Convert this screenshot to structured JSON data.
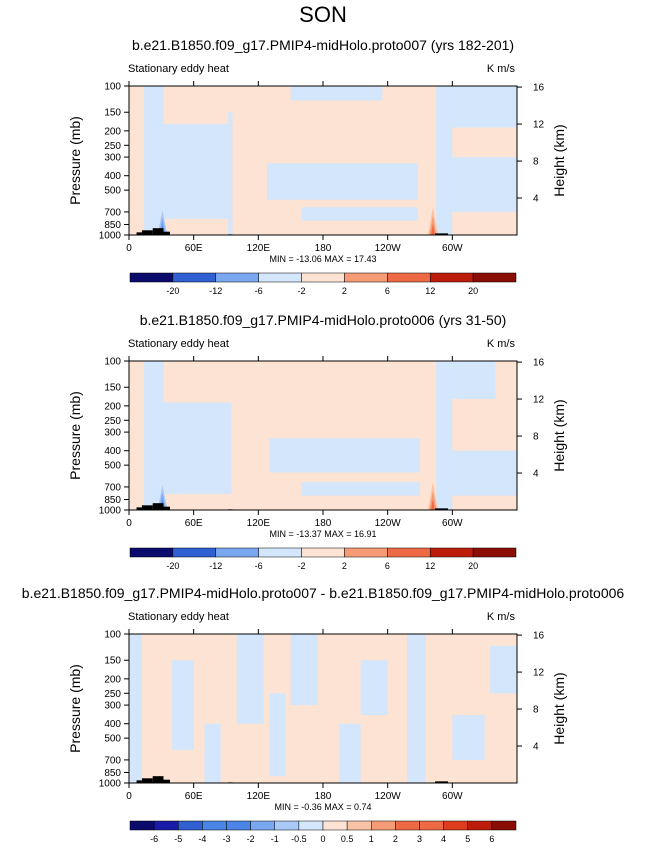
{
  "figure": {
    "season_title": "SON"
  },
  "colors": {
    "neg": [
      "#0b0b6e",
      "#1a1aa8",
      "#2f5fd0",
      "#4a84e6",
      "#7aa8f0",
      "#a9c9f7",
      "#d4e6fb"
    ],
    "pos": [
      "#fde3d3",
      "#f9c4a6",
      "#f59b76",
      "#ee6a45",
      "#de3c1c",
      "#bb1d0a",
      "#8a0e05"
    ],
    "land": "#000000"
  },
  "chart_data": [
    {
      "type": "heatmap",
      "title": "b.e21.B1850.f09_g17.PMIP4-midHolo.proto007 (yrs 182-201)",
      "left_label": "Stationary eddy heat",
      "units": "K m/s",
      "ylabel": "Pressure (mb)",
      "y2label": "Height (km)",
      "xticks": [
        "0",
        "60E",
        "120E",
        "180",
        "120W",
        "60W"
      ],
      "xtick_lon": [
        0,
        60,
        120,
        180,
        240,
        300
      ],
      "xlim": [
        0,
        360
      ],
      "yticks": [
        "100",
        "150",
        "200",
        "250",
        "300",
        "400",
        "500",
        "700",
        "850",
        "1000"
      ],
      "ytick_p": [
        100,
        150,
        200,
        250,
        300,
        400,
        500,
        700,
        850,
        1000
      ],
      "ylim_mb": [
        1000,
        100
      ],
      "y2ticks": [
        "4",
        "8",
        "12",
        "16"
      ],
      "y2tick_km": [
        4,
        8,
        12,
        16
      ],
      "stats": "MIN = -13.06  MAX =  17.43",
      "colorbar_labels": [
        "-20",
        "-12",
        "-6",
        "-2",
        "2",
        "6",
        "12",
        "20"
      ],
      "bands": [
        {
          "lon": [
            0,
            14
          ],
          "p": [
            100,
            1000
          ],
          "sign": 1
        },
        {
          "lon": [
            14,
            32
          ],
          "p": [
            100,
            1000
          ],
          "sign": -1
        },
        {
          "lon": [
            32,
            92
          ],
          "p": [
            180,
            780
          ],
          "sign": -1
        },
        {
          "lon": [
            92,
            96
          ],
          "p": [
            150,
            1000
          ],
          "sign": -1
        },
        {
          "lon": [
            128,
            268
          ],
          "p": [
            330,
            580
          ],
          "sign": -1
        },
        {
          "lon": [
            160,
            268
          ],
          "p": [
            650,
            800
          ],
          "sign": -1
        },
        {
          "lon": [
            150,
            235
          ],
          "p": [
            100,
            125
          ],
          "sign": -1
        },
        {
          "lon": [
            285,
            300
          ],
          "p": [
            100,
            1000
          ],
          "sign": -1
        },
        {
          "lon": [
            300,
            360
          ],
          "p": [
            100,
            190
          ],
          "sign": -1
        },
        {
          "lon": [
            300,
            360
          ],
          "p": [
            300,
            700
          ],
          "sign": -1
        }
      ],
      "spikes": [
        {
          "lon": 31,
          "p_top": 680,
          "sign": -1
        },
        {
          "lon": 282,
          "p_top": 650,
          "sign": 1
        }
      ],
      "orography": [
        {
          "lon": [
            7,
            12
          ],
          "p": 960
        },
        {
          "lon": [
            12,
            22
          ],
          "p": 930
        },
        {
          "lon": [
            22,
            32
          ],
          "p": 900
        },
        {
          "lon": [
            32,
            38
          ],
          "p": 950
        },
        {
          "lon": [
            92,
            96
          ],
          "p": 990
        },
        {
          "lon": [
            284,
            296
          ],
          "p": 975
        }
      ]
    },
    {
      "type": "heatmap",
      "title": "b.e21.B1850.f09_g17.PMIP4-midHolo.proto006 (yrs 31-50)",
      "left_label": "Stationary eddy heat",
      "units": "K m/s",
      "ylabel": "Pressure (mb)",
      "y2label": "Height (km)",
      "xticks": [
        "0",
        "60E",
        "120E",
        "180",
        "120W",
        "60W"
      ],
      "xtick_lon": [
        0,
        60,
        120,
        180,
        240,
        300
      ],
      "xlim": [
        0,
        360
      ],
      "yticks": [
        "100",
        "150",
        "200",
        "250",
        "300",
        "400",
        "500",
        "700",
        "850",
        "1000"
      ],
      "ytick_p": [
        100,
        150,
        200,
        250,
        300,
        400,
        500,
        700,
        850,
        1000
      ],
      "ylim_mb": [
        1000,
        100
      ],
      "y2ticks": [
        "4",
        "8",
        "12",
        "16"
      ],
      "y2tick_km": [
        4,
        8,
        12,
        16
      ],
      "stats": "MIN = -13.37  MAX =  16.91",
      "colorbar_labels": [
        "-20",
        "-12",
        "-6",
        "-2",
        "2",
        "6",
        "12",
        "20"
      ],
      "bands": [
        {
          "lon": [
            0,
            14
          ],
          "p": [
            100,
            1000
          ],
          "sign": 1
        },
        {
          "lon": [
            14,
            32
          ],
          "p": [
            100,
            1000
          ],
          "sign": -1
        },
        {
          "lon": [
            32,
            95
          ],
          "p": [
            190,
            780
          ],
          "sign": -1
        },
        {
          "lon": [
            130,
            270
          ],
          "p": [
            330,
            560
          ],
          "sign": -1
        },
        {
          "lon": [
            160,
            270
          ],
          "p": [
            650,
            800
          ],
          "sign": -1
        },
        {
          "lon": [
            285,
            300
          ],
          "p": [
            100,
            1000
          ],
          "sign": -1
        },
        {
          "lon": [
            300,
            340
          ],
          "p": [
            100,
            180
          ],
          "sign": -1
        },
        {
          "lon": [
            300,
            360
          ],
          "p": [
            400,
            800
          ],
          "sign": -1
        }
      ],
      "spikes": [
        {
          "lon": 31,
          "p_top": 680,
          "sign": -1
        },
        {
          "lon": 282,
          "p_top": 650,
          "sign": 1
        }
      ],
      "orography": [
        {
          "lon": [
            7,
            12
          ],
          "p": 960
        },
        {
          "lon": [
            12,
            22
          ],
          "p": 930
        },
        {
          "lon": [
            22,
            32
          ],
          "p": 900
        },
        {
          "lon": [
            32,
            38
          ],
          "p": 950
        },
        {
          "lon": [
            92,
            96
          ],
          "p": 990
        },
        {
          "lon": [
            284,
            296
          ],
          "p": 975
        }
      ]
    },
    {
      "type": "heatmap",
      "title": "b.e21.B1850.f09_g17.PMIP4-midHolo.proto007 - b.e21.B1850.f09_g17.PMIP4-midHolo.proto006",
      "left_label": "Stationary eddy heat",
      "units": "K m/s",
      "ylabel": "Pressure (mb)",
      "y2label": "Height (km)",
      "xticks": [
        "0",
        "60E",
        "120E",
        "180",
        "120W",
        "60W"
      ],
      "xtick_lon": [
        0,
        60,
        120,
        180,
        240,
        300
      ],
      "xlim": [
        0,
        360
      ],
      "yticks": [
        "100",
        "150",
        "200",
        "250",
        "300",
        "400",
        "500",
        "700",
        "850",
        "1000"
      ],
      "ytick_p": [
        100,
        150,
        200,
        250,
        300,
        400,
        500,
        700,
        850,
        1000
      ],
      "ylim_mb": [
        1000,
        100
      ],
      "y2ticks": [
        "4",
        "8",
        "12",
        "16"
      ],
      "y2tick_km": [
        4,
        8,
        12,
        16
      ],
      "stats": "MIN = -0.36  MAX =   0.74",
      "colorbar_labels": [
        "-6",
        "-5",
        "-4",
        "-3",
        "-2",
        "-1",
        "-0.5",
        "0",
        "0.5",
        "1",
        "2",
        "3",
        "4",
        "5",
        "6"
      ],
      "bands": [
        {
          "lon": [
            0,
            12
          ],
          "p": [
            100,
            1000
          ],
          "sign": -1
        },
        {
          "lon": [
            40,
            60
          ],
          "p": [
            150,
            600
          ],
          "sign": -1
        },
        {
          "lon": [
            70,
            85
          ],
          "p": [
            400,
            1000
          ],
          "sign": -1
        },
        {
          "lon": [
            100,
            125
          ],
          "p": [
            100,
            400
          ],
          "sign": -1
        },
        {
          "lon": [
            130,
            145
          ],
          "p": [
            250,
            900
          ],
          "sign": -1
        },
        {
          "lon": [
            150,
            175
          ],
          "p": [
            100,
            300
          ],
          "sign": -1
        },
        {
          "lon": [
            195,
            215
          ],
          "p": [
            400,
            1000
          ],
          "sign": -1
        },
        {
          "lon": [
            215,
            240
          ],
          "p": [
            150,
            350
          ],
          "sign": -1
        },
        {
          "lon": [
            258,
            275
          ],
          "p": [
            100,
            1000
          ],
          "sign": -1
        },
        {
          "lon": [
            300,
            330
          ],
          "p": [
            350,
            700
          ],
          "sign": -1
        },
        {
          "lon": [
            335,
            360
          ],
          "p": [
            120,
            250
          ],
          "sign": -1
        }
      ],
      "spikes": [],
      "orography": [
        {
          "lon": [
            7,
            12
          ],
          "p": 960
        },
        {
          "lon": [
            12,
            22
          ],
          "p": 930
        },
        {
          "lon": [
            22,
            32
          ],
          "p": 900
        },
        {
          "lon": [
            32,
            38
          ],
          "p": 950
        },
        {
          "lon": [
            92,
            96
          ],
          "p": 990
        },
        {
          "lon": [
            284,
            296
          ],
          "p": 975
        }
      ]
    }
  ]
}
